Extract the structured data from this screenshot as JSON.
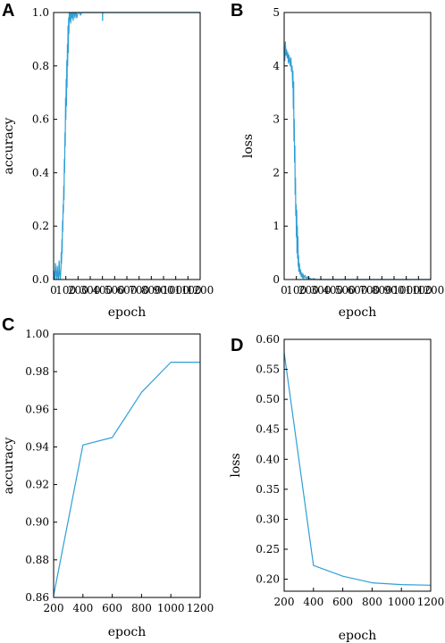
{
  "panels": [
    "A",
    "B",
    "C",
    "D"
  ],
  "colors": {
    "series": "#2e9fd6",
    "axes": "#000000"
  },
  "chart_data": [
    {
      "panel": "A",
      "type": "line",
      "xlabel": "epoch",
      "ylabel": "accuracy",
      "xlim": [
        0,
        1200
      ],
      "ylim": [
        0,
        1.0
      ],
      "xticks": [
        0,
        100,
        200,
        300,
        400,
        500,
        600,
        700,
        800,
        900,
        1000,
        1100,
        1200
      ],
      "yticks": [
        0.0,
        0.2,
        0.4,
        0.6,
        0.8,
        1.0
      ],
      "ytick_labels": [
        "0.0",
        "0.2",
        "0.4",
        "0.6",
        "0.8",
        "1.0"
      ],
      "grid": false,
      "series": [
        {
          "x": [
            0,
            5,
            10,
            15,
            20,
            25,
            30,
            35,
            40,
            45,
            50,
            55,
            60,
            62,
            65,
            68,
            70,
            73,
            75,
            78,
            80,
            83,
            85,
            88,
            90,
            93,
            95,
            98,
            100,
            103,
            105,
            108,
            110,
            113,
            115,
            118,
            120,
            123,
            125,
            128,
            130,
            135,
            140,
            145,
            150,
            155,
            160,
            165,
            170,
            175,
            180,
            185,
            190,
            200,
            210,
            220,
            230,
            240,
            250,
            400,
            401,
            402,
            500,
            1200
          ],
          "y": [
            0.0,
            0.03,
            0.0,
            0.06,
            0.02,
            0.0,
            0.05,
            0.01,
            0.0,
            0.07,
            0.02,
            0.0,
            0.04,
            0.1,
            0.06,
            0.15,
            0.1,
            0.22,
            0.18,
            0.28,
            0.25,
            0.35,
            0.3,
            0.45,
            0.4,
            0.55,
            0.5,
            0.68,
            0.6,
            0.75,
            0.65,
            0.82,
            0.72,
            0.88,
            0.8,
            0.95,
            0.85,
            0.98,
            0.92,
            1.0,
            0.97,
            1.0,
            0.96,
            1.0,
            0.98,
            1.0,
            0.97,
            1.0,
            1.0,
            0.98,
            1.0,
            1.0,
            0.98,
            1.0,
            1.0,
            0.99,
            1.0,
            1.0,
            1.0,
            1.0,
            0.97,
            1.0,
            1.0,
            1.0
          ]
        }
      ]
    },
    {
      "panel": "B",
      "type": "line",
      "xlabel": "epoch",
      "ylabel": "loss",
      "xlim": [
        0,
        1200
      ],
      "ylim": [
        0,
        5
      ],
      "xticks": [
        0,
        100,
        200,
        300,
        400,
        500,
        600,
        700,
        800,
        900,
        1000,
        1100,
        1200
      ],
      "yticks": [
        0,
        1,
        2,
        3,
        4,
        5
      ],
      "ytick_labels": [
        "0",
        "1",
        "2",
        "3",
        "4",
        "5"
      ],
      "grid": false,
      "series": [
        {
          "x": [
            0,
            5,
            10,
            15,
            20,
            25,
            30,
            35,
            40,
            45,
            50,
            55,
            60,
            65,
            70,
            72,
            75,
            78,
            80,
            83,
            85,
            88,
            90,
            93,
            95,
            98,
            100,
            103,
            105,
            108,
            110,
            113,
            115,
            118,
            120,
            125,
            130,
            135,
            140,
            145,
            150,
            155,
            160,
            170,
            180,
            190,
            200,
            210,
            220,
            230,
            240,
            260,
            300,
            400,
            600,
            1200
          ],
          "y": [
            4.35,
            4.1,
            4.45,
            4.2,
            4.3,
            4.15,
            4.25,
            4.05,
            4.2,
            4.1,
            4.0,
            4.15,
            3.9,
            4.0,
            3.6,
            3.9,
            3.2,
            3.7,
            2.6,
            3.0,
            2.2,
            2.5,
            1.6,
            1.9,
            1.2,
            1.4,
            0.8,
            1.3,
            0.5,
            1.0,
            0.4,
            0.8,
            0.25,
            0.45,
            0.15,
            0.3,
            0.1,
            0.18,
            0.05,
            0.12,
            0.03,
            0.1,
            0.02,
            0.08,
            0.02,
            0.05,
            0.01,
            0.03,
            0.01,
            0.0,
            0.02,
            0.0,
            0.0,
            0.0,
            0.0,
            0.0
          ]
        }
      ]
    },
    {
      "panel": "C",
      "type": "line",
      "xlabel": "epoch",
      "ylabel": "accuracy",
      "xlim": [
        200,
        1200
      ],
      "ylim": [
        0.86,
        1.0
      ],
      "xticks": [
        200,
        400,
        600,
        800,
        1000,
        1200
      ],
      "yticks": [
        0.86,
        0.88,
        0.9,
        0.92,
        0.94,
        0.96,
        0.98,
        1.0
      ],
      "ytick_labels": [
        "0.86",
        "0.88",
        "0.90",
        "0.92",
        "0.94",
        "0.96",
        "0.98",
        "1.00"
      ],
      "grid": false,
      "series": [
        {
          "x": [
            200,
            400,
            600,
            800,
            1000,
            1200
          ],
          "y": [
            0.861,
            0.941,
            0.945,
            0.969,
            0.985,
            0.985
          ]
        }
      ]
    },
    {
      "panel": "D",
      "type": "line",
      "xlabel": "epoch",
      "ylabel": "loss",
      "xlim": [
        200,
        1200
      ],
      "ylim": [
        0.18,
        0.6
      ],
      "xticks": [
        200,
        400,
        600,
        800,
        1000,
        1200
      ],
      "yticks": [
        0.2,
        0.25,
        0.3,
        0.35,
        0.4,
        0.45,
        0.5,
        0.55,
        0.6
      ],
      "ytick_labels": [
        "0.20",
        "0.25",
        "0.30",
        "0.35",
        "0.40",
        "0.45",
        "0.50",
        "0.55",
        "0.60"
      ],
      "grid": false,
      "series": [
        {
          "x": [
            200,
            400,
            600,
            800,
            1000,
            1200
          ],
          "y": [
            0.578,
            0.223,
            0.205,
            0.194,
            0.191,
            0.19
          ]
        }
      ]
    }
  ]
}
